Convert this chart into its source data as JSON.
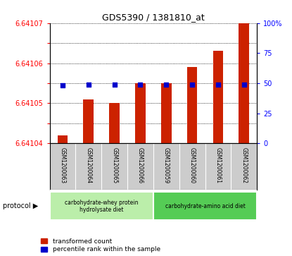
{
  "title": "GDS5390 / 1381810_at",
  "samples": [
    "GSM1200063",
    "GSM1200064",
    "GSM1200065",
    "GSM1200066",
    "GSM1200059",
    "GSM1200060",
    "GSM1200061",
    "GSM1200062"
  ],
  "transformed_count": [
    6.641042,
    6.641051,
    6.64105,
    6.641055,
    6.641055,
    6.641059,
    6.641063,
    6.64107
  ],
  "baseline": 6.64104,
  "percentile_rank": [
    48,
    49,
    49,
    49,
    49,
    49,
    49,
    49
  ],
  "ylim_left": [
    6.64104,
    6.64107
  ],
  "ylim_right": [
    0,
    100
  ],
  "yticks_left": [
    6.64104,
    6.641045,
    6.64105,
    6.641055,
    6.64106,
    6.641065,
    6.64107
  ],
  "ytick_labels_left": [
    "6.64104",
    "",
    "6.64105",
    "",
    "6.64106",
    "",
    "6.64107"
  ],
  "yticks_right": [
    0,
    25,
    50,
    75,
    100
  ],
  "ytick_labels_right": [
    "0",
    "25",
    "50",
    "75",
    "100%"
  ],
  "bar_color": "#cc2200",
  "dot_color": "#0000cc",
  "protocol_groups": [
    {
      "label": "carbohydrate-whey protein\nhydrolysate diet",
      "start": 0,
      "end": 4,
      "color": "#bbeeaa"
    },
    {
      "label": "carbohydrate-amino acid diet",
      "start": 4,
      "end": 8,
      "color": "#55cc55"
    }
  ],
  "legend_items": [
    {
      "color": "#cc2200",
      "label": "transformed count"
    },
    {
      "color": "#0000cc",
      "label": "percentile rank within the sample"
    }
  ],
  "background_label": "#cccccc",
  "grid_color": "#000000",
  "bar_width": 0.4
}
